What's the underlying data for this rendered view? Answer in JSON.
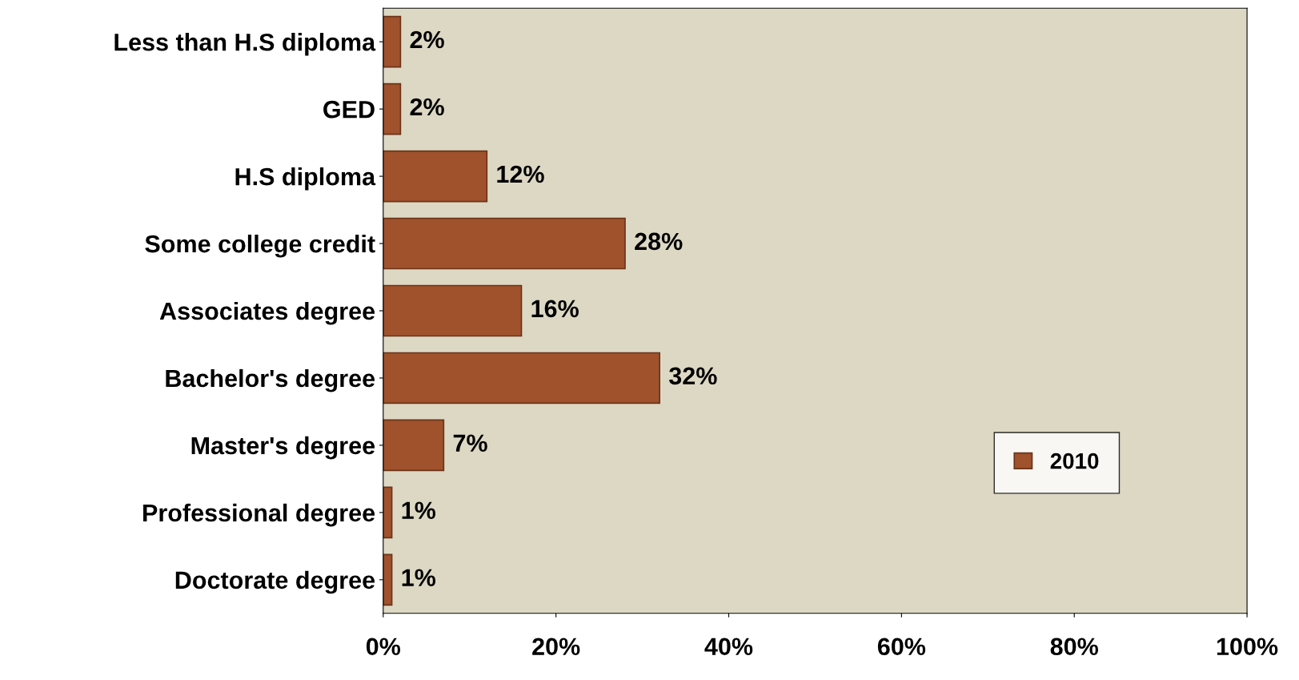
{
  "chart_data": {
    "type": "bar",
    "orientation": "horizontal",
    "categories": [
      "Less than H.S diploma",
      "GED",
      "H.S diploma",
      "Some college credit",
      "Associates degree",
      "Bachelor's degree",
      "Master's degree",
      "Professional degree",
      "Doctorate degree"
    ],
    "series": [
      {
        "name": "2010",
        "color": "#a0522d",
        "values": [
          2,
          2,
          12,
          28,
          16,
          32,
          7,
          1,
          1
        ],
        "value_labels": [
          "2%",
          "2%",
          "12%",
          "28%",
          "16%",
          "32%",
          "7%",
          "1%",
          "1%"
        ]
      }
    ],
    "xlim": [
      0,
      100
    ],
    "xticks": [
      {
        "value": 0,
        "label": "0%"
      },
      {
        "value": 20,
        "label": "20%"
      },
      {
        "value": 40,
        "label": "40%"
      },
      {
        "value": 60,
        "label": "60%"
      },
      {
        "value": 80,
        "label": "80%"
      },
      {
        "value": 100,
        "label": "100%"
      }
    ],
    "grid": false,
    "legend": "bottom right"
  }
}
